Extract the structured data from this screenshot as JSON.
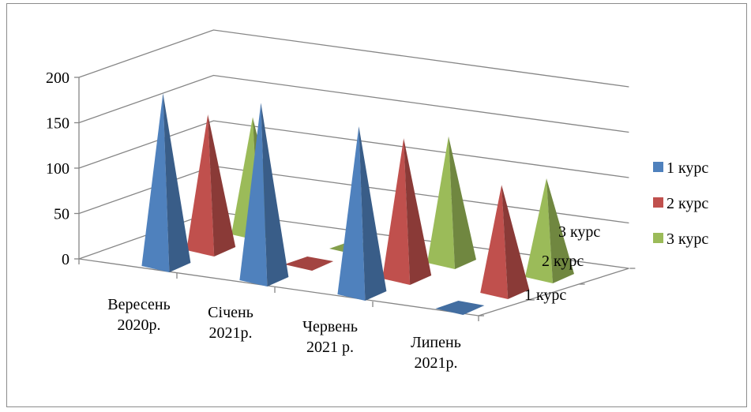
{
  "chart_data": {
    "type": "bar",
    "shape": "3d-pyramid",
    "title": "",
    "categories": [
      "Вересень 2020р.",
      "Січень 2021р.",
      "Червень 2021 р.",
      "Липень 2021р."
    ],
    "categories_display": [
      [
        "Вересень",
        "2020р."
      ],
      [
        "Січень",
        "2021р."
      ],
      [
        "Червень",
        "2021 р."
      ],
      [
        "Липень",
        "2021р."
      ]
    ],
    "series": [
      {
        "name": "1 курс",
        "color": "#4F81BD",
        "values": [
          190,
          195,
          185,
          0
        ]
      },
      {
        "name": "2 курс",
        "color": "#C0504D",
        "values": [
          150,
          0,
          155,
          120
        ]
      },
      {
        "name": "3 курс",
        "color": "#9BBB59",
        "values": [
          130,
          0,
          140,
          110
        ]
      }
    ],
    "depth_labels": [
      "1 курс",
      "2 курс",
      "3 курс"
    ],
    "y_ticks": [
      "0",
      "50",
      "100",
      "150",
      "200"
    ],
    "ylim": [
      0,
      200
    ],
    "grid": true,
    "legend": "right"
  }
}
